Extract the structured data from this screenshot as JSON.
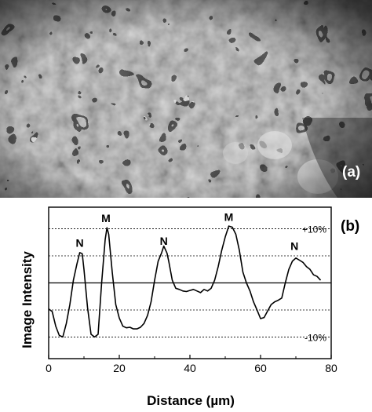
{
  "image_panel": {
    "label": "(a)"
  },
  "chart_data": {
    "type": "line",
    "panel_label": "(b)",
    "xlabel": "Distance (µm)",
    "ylabel": "Image Intensity",
    "xlim": [
      0,
      80
    ],
    "ylim": [
      -14,
      14
    ],
    "x_ticks": [
      0,
      20,
      40,
      60,
      80
    ],
    "grid": false,
    "reference_lines": [
      {
        "value": 10,
        "label": "+10%"
      },
      {
        "value": 5,
        "label": ""
      },
      {
        "value": 0,
        "label": "",
        "solid": true
      },
      {
        "value": -5,
        "label": ""
      },
      {
        "value": -10,
        "label": "-10%"
      }
    ],
    "annotations": [
      {
        "text": "N",
        "x": 8.8,
        "y": 5.8
      },
      {
        "text": "M",
        "x": 16.2,
        "y": 10.4
      },
      {
        "text": "N",
        "x": 32.6,
        "y": 6.2
      },
      {
        "text": "M",
        "x": 51.0,
        "y": 10.6
      },
      {
        "text": "N",
        "x": 69.6,
        "y": 5.2
      }
    ],
    "series": [
      {
        "x": [
          0,
          1,
          2,
          3,
          4,
          5,
          6,
          7,
          8,
          8.8,
          9.5,
          10,
          11,
          12,
          13,
          14,
          15,
          16,
          16.5,
          17,
          18,
          19,
          20,
          21,
          22,
          23,
          24,
          25,
          26,
          27,
          28,
          29,
          30,
          31,
          32,
          32.6,
          33.5,
          34,
          35,
          36,
          37,
          38,
          39,
          40,
          41,
          42,
          43,
          44,
          45,
          46,
          47,
          48,
          49,
          50,
          51,
          52,
          53,
          54,
          55,
          56,
          57,
          58,
          59,
          60,
          61,
          62,
          63,
          64,
          65,
          66,
          67,
          68,
          69,
          70,
          71,
          72,
          73,
          74,
          75,
          76,
          77
        ],
        "y": [
          -4.8,
          -5.3,
          -8.0,
          -9.7,
          -10.0,
          -7.5,
          -4.0,
          0.5,
          3.5,
          5.6,
          5.4,
          2.5,
          -4.5,
          -9.5,
          -10.0,
          -9.5,
          0.0,
          8.0,
          10.2,
          9.0,
          2.0,
          -4.0,
          -6.5,
          -8.0,
          -8.3,
          -8.2,
          -8.5,
          -8.5,
          -8.2,
          -7.5,
          -6.0,
          -3.5,
          0.5,
          4.0,
          5.6,
          6.8,
          5.5,
          4.0,
          0.5,
          -1.0,
          -1.2,
          -1.5,
          -1.6,
          -1.4,
          -1.2,
          -1.5,
          -1.8,
          -1.2,
          -1.5,
          -1.0,
          0.5,
          3.0,
          6.0,
          8.5,
          10.5,
          10.3,
          9.0,
          6.0,
          2.0,
          0.0,
          -1.5,
          -3.5,
          -5.0,
          -6.6,
          -6.4,
          -5.2,
          -4.0,
          -3.5,
          -3.2,
          -2.8,
          0.0,
          2.5,
          4.0,
          4.6,
          4.2,
          3.8,
          3.0,
          2.5,
          1.5,
          1.2,
          0.5
        ]
      }
    ]
  }
}
